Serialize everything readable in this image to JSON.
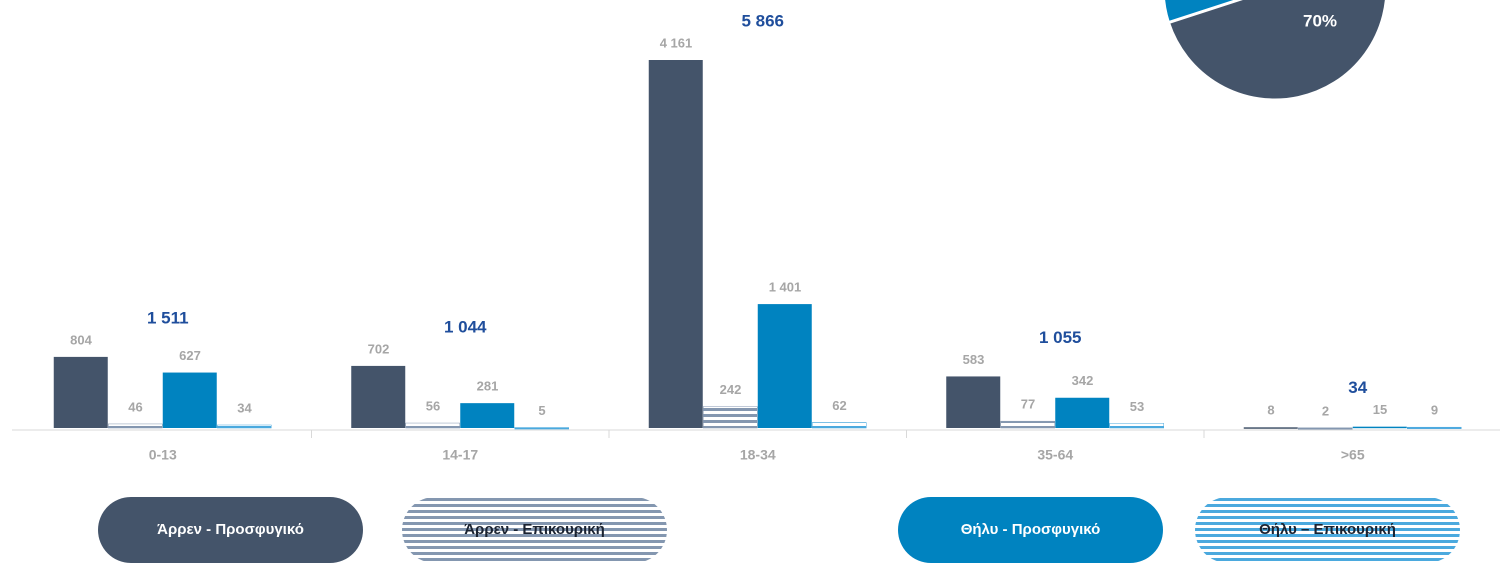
{
  "chart_data": [
    {
      "type": "bar",
      "categories": [
        "0-13",
        "14-17",
        "18-34",
        "35-64",
        ">65"
      ],
      "series": [
        {
          "name": "Άρρεν - Προσφυγικό",
          "color": "#44546a",
          "values": [
            804,
            702,
            4161,
            583,
            8
          ],
          "value_labels": [
            "804",
            "702",
            "4 161",
            "583",
            "8"
          ]
        },
        {
          "name": "Άρρεν - Επικουρική",
          "color": "#8497b0",
          "pattern": "stripes",
          "values": [
            46,
            56,
            242,
            77,
            2
          ],
          "value_labels": [
            "46",
            "56",
            "242",
            "77",
            "2"
          ]
        },
        {
          "name": "Θήλυ - Προσφυγικό",
          "color": "#0083c0",
          "values": [
            627,
            281,
            1401,
            342,
            15
          ],
          "value_labels": [
            "627",
            "281",
            "1 401",
            "342",
            "15"
          ]
        },
        {
          "name": "Θήλυ – Επικουρική",
          "color": "#4ba9de",
          "pattern": "stripes",
          "values": [
            34,
            5,
            62,
            53,
            9
          ],
          "value_labels": [
            "34",
            "5",
            "62",
            "53",
            "9"
          ]
        }
      ],
      "totals": [
        1511,
        1044,
        5866,
        1055,
        34
      ],
      "total_labels": [
        "1 511",
        "1 044",
        "5 866",
        "1 055",
        "34"
      ]
    },
    {
      "type": "pie",
      "values": [
        70
      ],
      "value_labels": [
        "70%"
      ],
      "color": "#44546a",
      "rest_color": "#0083c0"
    }
  ]
}
